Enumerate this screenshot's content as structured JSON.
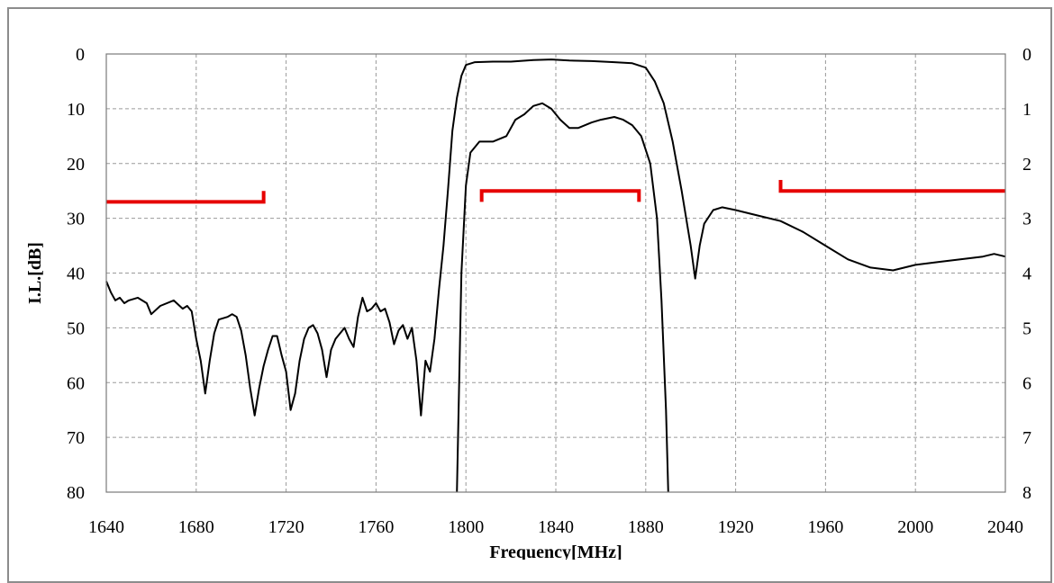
{
  "chart_data": {
    "type": "line",
    "title": "",
    "xlabel": "Frequency[MHz]",
    "ylabel": "I.L.[dB]",
    "xlim": [
      1640,
      2040
    ],
    "ylim": [
      0,
      80
    ],
    "y2lim": [
      0,
      8
    ],
    "y_inverted": true,
    "grid": true,
    "x_ticks": [
      1640,
      1680,
      1720,
      1760,
      1800,
      1840,
      1880,
      1920,
      1960,
      2000,
      2040
    ],
    "y_ticks": [
      0,
      10,
      20,
      30,
      40,
      50,
      60,
      70,
      80
    ],
    "y2_ticks": [
      0,
      1,
      2,
      3,
      4,
      5,
      6,
      7,
      8
    ],
    "x_tick_labels": [
      "1640",
      "1680",
      "1720",
      "1760",
      "1800",
      "1840",
      "1880",
      "1920",
      "1960",
      "2000",
      "2040"
    ],
    "y_tick_labels": [
      "0",
      "10",
      "20",
      "30",
      "40",
      "50",
      "60",
      "70",
      "80"
    ],
    "y2_tick_labels": [
      "0",
      "1",
      "2",
      "3",
      "4",
      "5",
      "6",
      "7",
      "8"
    ],
    "series": [
      {
        "axis": "left",
        "color": "#000000",
        "points": [
          [
            1640,
            41.5
          ],
          [
            1642,
            43.5
          ],
          [
            1644,
            45.0
          ],
          [
            1646,
            44.5
          ],
          [
            1648,
            45.5
          ],
          [
            1650,
            45.0
          ],
          [
            1654,
            44.5
          ],
          [
            1658,
            45.5
          ],
          [
            1660,
            47.5
          ],
          [
            1664,
            46.0
          ],
          [
            1670,
            45.0
          ],
          [
            1674,
            46.5
          ],
          [
            1676,
            46.0
          ],
          [
            1678,
            47.0
          ],
          [
            1680,
            52.0
          ],
          [
            1682,
            56.0
          ],
          [
            1684,
            62.0
          ],
          [
            1686,
            56.0
          ],
          [
            1688,
            51.0
          ],
          [
            1690,
            48.5
          ],
          [
            1694,
            48.0
          ],
          [
            1696,
            47.5
          ],
          [
            1698,
            48.0
          ],
          [
            1700,
            50.5
          ],
          [
            1702,
            55.0
          ],
          [
            1704,
            61.0
          ],
          [
            1706,
            66.0
          ],
          [
            1708,
            61.0
          ],
          [
            1710,
            57.0
          ],
          [
            1712,
            54.0
          ],
          [
            1714,
            51.5
          ],
          [
            1716,
            51.5
          ],
          [
            1718,
            55.0
          ],
          [
            1720,
            58.0
          ],
          [
            1722,
            65.0
          ],
          [
            1724,
            62.0
          ],
          [
            1726,
            56.0
          ],
          [
            1728,
            52.0
          ],
          [
            1730,
            50.0
          ],
          [
            1732,
            49.5
          ],
          [
            1734,
            51.0
          ],
          [
            1736,
            54.0
          ],
          [
            1738,
            59.0
          ],
          [
            1740,
            54.0
          ],
          [
            1742,
            52.0
          ],
          [
            1744,
            51.0
          ],
          [
            1746,
            50.0
          ],
          [
            1748,
            52.0
          ],
          [
            1750,
            53.5
          ],
          [
            1752,
            48.0
          ],
          [
            1754,
            44.5
          ],
          [
            1756,
            47.0
          ],
          [
            1758,
            46.5
          ],
          [
            1760,
            45.5
          ],
          [
            1762,
            47.0
          ],
          [
            1764,
            46.5
          ],
          [
            1766,
            49.0
          ],
          [
            1768,
            53.0
          ],
          [
            1770,
            50.5
          ],
          [
            1772,
            49.5
          ],
          [
            1774,
            52.0
          ],
          [
            1776,
            50.0
          ],
          [
            1778,
            56.0
          ],
          [
            1780,
            66.0
          ],
          [
            1782,
            56.0
          ],
          [
            1784,
            58.0
          ],
          [
            1786,
            52.0
          ],
          [
            1788,
            43.0
          ],
          [
            1790,
            35.0
          ],
          [
            1792,
            25.0
          ],
          [
            1794,
            14.0
          ],
          [
            1796,
            8.0
          ],
          [
            1798,
            4.0
          ],
          [
            1800,
            2.0
          ],
          [
            1804,
            1.5
          ],
          [
            1812,
            1.4
          ],
          [
            1820,
            1.4
          ],
          [
            1830,
            1.1
          ],
          [
            1838,
            1.0
          ],
          [
            1846,
            1.2
          ],
          [
            1856,
            1.3
          ],
          [
            1866,
            1.5
          ],
          [
            1874,
            1.7
          ],
          [
            1880,
            2.5
          ],
          [
            1884,
            5.0
          ],
          [
            1888,
            9.0
          ],
          [
            1892,
            16.0
          ],
          [
            1896,
            25.0
          ],
          [
            1900,
            35.0
          ],
          [
            1902,
            41.0
          ],
          [
            1904,
            35.0
          ],
          [
            1906,
            31.0
          ],
          [
            1910,
            28.5
          ],
          [
            1914,
            28.0
          ],
          [
            1920,
            28.5
          ],
          [
            1930,
            29.5
          ],
          [
            1940,
            30.5
          ],
          [
            1950,
            32.5
          ],
          [
            1960,
            35.0
          ],
          [
            1970,
            37.5
          ],
          [
            1980,
            39.0
          ],
          [
            1990,
            39.5
          ],
          [
            2000,
            38.5
          ],
          [
            2010,
            38.0
          ],
          [
            2020,
            37.5
          ],
          [
            2030,
            37.0
          ],
          [
            2035,
            36.5
          ],
          [
            2040,
            37.0
          ]
        ]
      },
      {
        "axis": "right",
        "color": "#000000",
        "points": [
          [
            1796,
            8.0
          ],
          [
            1797,
            6.0
          ],
          [
            1798,
            4.0
          ],
          [
            1800,
            2.4
          ],
          [
            1802,
            1.8
          ],
          [
            1806,
            1.6
          ],
          [
            1812,
            1.6
          ],
          [
            1818,
            1.5
          ],
          [
            1822,
            1.2
          ],
          [
            1826,
            1.1
          ],
          [
            1830,
            0.95
          ],
          [
            1834,
            0.9
          ],
          [
            1838,
            1.0
          ],
          [
            1842,
            1.2
          ],
          [
            1846,
            1.35
          ],
          [
            1850,
            1.35
          ],
          [
            1856,
            1.25
          ],
          [
            1860,
            1.2
          ],
          [
            1866,
            1.15
          ],
          [
            1870,
            1.2
          ],
          [
            1874,
            1.3
          ],
          [
            1878,
            1.5
          ],
          [
            1882,
            2.0
          ],
          [
            1885,
            3.0
          ],
          [
            1887,
            4.5
          ],
          [
            1889,
            6.5
          ],
          [
            1890,
            8.0
          ]
        ]
      }
    ],
    "annotations": [
      {
        "type": "bracket",
        "color": "#e60000",
        "y": 27,
        "x": [
          1640,
          1710
        ],
        "tick_end": "right",
        "tick_y": 25
      },
      {
        "type": "bracket",
        "color": "#e60000",
        "y": 25,
        "x": [
          1807,
          1877
        ],
        "tick_end": "both",
        "tick_y": 27
      },
      {
        "type": "bracket",
        "color": "#e60000",
        "y": 25,
        "x": [
          1940,
          2040
        ],
        "tick_end": "left",
        "tick_y": 23
      }
    ]
  }
}
